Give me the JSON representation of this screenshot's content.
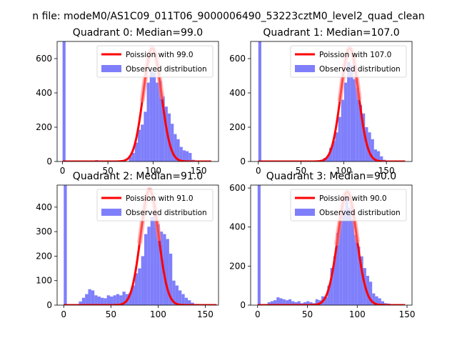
{
  "figure_title": "n file: modeM0/AS1C09_011T06_9000006490_53223cztM0_level2_quad_clean",
  "colors": {
    "observed": "#7f7ffb",
    "poisson": "#ff0000"
  },
  "chart_data": [
    {
      "type": "bar",
      "title": "Quadrant 0: Median=99.0",
      "xlim": [
        -6,
        172
      ],
      "ylim": [
        0,
        700
      ],
      "xticks": [
        0,
        50,
        100,
        150
      ],
      "yticks": [
        0,
        200,
        400,
        600
      ],
      "legend": [
        "Poission with 99.0",
        "Observed distribution"
      ],
      "legend_position": "top-right",
      "poisson_mean": 99.0,
      "poisson_peak": 660,
      "poisson_xrange": [
        0,
        164
      ],
      "bin_width": 3.3,
      "bins": [
        {
          "x0": 0,
          "v": 700
        },
        {
          "x0": 36,
          "v": 8
        },
        {
          "x0": 45,
          "v": 5
        },
        {
          "x0": 57,
          "v": 4
        },
        {
          "x0": 66,
          "v": 8
        },
        {
          "x0": 73.1,
          "v": 30
        },
        {
          "x0": 76.4,
          "v": 50
        },
        {
          "x0": 79.7,
          "v": 110
        },
        {
          "x0": 83,
          "v": 185
        },
        {
          "x0": 86.3,
          "v": 215
        },
        {
          "x0": 89.6,
          "v": 290
        },
        {
          "x0": 92.9,
          "v": 460
        },
        {
          "x0": 96.2,
          "v": 530
        },
        {
          "x0": 99.5,
          "v": 520
        },
        {
          "x0": 102.8,
          "v": 460
        },
        {
          "x0": 106.1,
          "v": 470
        },
        {
          "x0": 109.4,
          "v": 380
        },
        {
          "x0": 112.7,
          "v": 320
        },
        {
          "x0": 116,
          "v": 280
        },
        {
          "x0": 119.3,
          "v": 220
        },
        {
          "x0": 122.6,
          "v": 160
        },
        {
          "x0": 125.9,
          "v": 130
        },
        {
          "x0": 129.2,
          "v": 85
        },
        {
          "x0": 132.5,
          "v": 65
        },
        {
          "x0": 135.8,
          "v": 60
        },
        {
          "x0": 139.1,
          "v": 50
        },
        {
          "x0": 142.4,
          "v": 10
        },
        {
          "x0": 149,
          "v": 4
        }
      ]
    },
    {
      "type": "bar",
      "title": "Quadrant 1: Median=107.0",
      "xlim": [
        -9,
        180
      ],
      "ylim": [
        0,
        700
      ],
      "xticks": [
        0,
        50,
        100,
        150
      ],
      "yticks": [
        0,
        200,
        400,
        600
      ],
      "legend": [
        "Poission with 107.0",
        "Observed distribution"
      ],
      "legend_position": "top-right",
      "poisson_mean": 107.0,
      "poisson_peak": 660,
      "poisson_xrange": [
        0,
        172
      ],
      "bin_width": 3.5,
      "bins": [
        {
          "x0": 0,
          "v": 700
        },
        {
          "x0": 50,
          "v": 4
        },
        {
          "x0": 65,
          "v": 5
        },
        {
          "x0": 76,
          "v": 20
        },
        {
          "x0": 79.5,
          "v": 30
        },
        {
          "x0": 83,
          "v": 80
        },
        {
          "x0": 86.5,
          "v": 120
        },
        {
          "x0": 90,
          "v": 170
        },
        {
          "x0": 93.5,
          "v": 260
        },
        {
          "x0": 97,
          "v": 360
        },
        {
          "x0": 100.5,
          "v": 460
        },
        {
          "x0": 104,
          "v": 580
        },
        {
          "x0": 107.5,
          "v": 560
        },
        {
          "x0": 111,
          "v": 480
        },
        {
          "x0": 114.5,
          "v": 430
        },
        {
          "x0": 118,
          "v": 330
        },
        {
          "x0": 121.5,
          "v": 280
        },
        {
          "x0": 125,
          "v": 200
        },
        {
          "x0": 128.5,
          "v": 170
        },
        {
          "x0": 132,
          "v": 130
        },
        {
          "x0": 135.5,
          "v": 70
        },
        {
          "x0": 139,
          "v": 60
        },
        {
          "x0": 142.5,
          "v": 30
        },
        {
          "x0": 146,
          "v": 10
        },
        {
          "x0": 150,
          "v": 6
        }
      ]
    },
    {
      "type": "bar",
      "title": "Quadrant 2: Median=91.0",
      "xlim": [
        -7,
        164
      ],
      "ylim": [
        0,
        490
      ],
      "xticks": [
        0,
        50,
        100,
        150
      ],
      "yticks": [
        0,
        100,
        200,
        300,
        400
      ],
      "legend": [
        "Poission with 91.0",
        "Observed distribution"
      ],
      "legend_position": "top-right",
      "poisson_mean": 91.0,
      "poisson_peak": 470,
      "poisson_xrange": [
        0,
        162
      ],
      "bin_width": 3.3,
      "bins": [
        {
          "x0": 0,
          "v": 490
        },
        {
          "x0": 16,
          "v": 15
        },
        {
          "x0": 19.3,
          "v": 30
        },
        {
          "x0": 22.6,
          "v": 45
        },
        {
          "x0": 25.9,
          "v": 65
        },
        {
          "x0": 29.2,
          "v": 60
        },
        {
          "x0": 32.5,
          "v": 40
        },
        {
          "x0": 35.8,
          "v": 35
        },
        {
          "x0": 39.1,
          "v": 30
        },
        {
          "x0": 42.4,
          "v": 28
        },
        {
          "x0": 45.7,
          "v": 40
        },
        {
          "x0": 49,
          "v": 35
        },
        {
          "x0": 52.3,
          "v": 40
        },
        {
          "x0": 55.6,
          "v": 45
        },
        {
          "x0": 58.9,
          "v": 40
        },
        {
          "x0": 62.2,
          "v": 55
        },
        {
          "x0": 65.5,
          "v": 45
        },
        {
          "x0": 68.8,
          "v": 50
        },
        {
          "x0": 72.1,
          "v": 80
        },
        {
          "x0": 75.4,
          "v": 130
        },
        {
          "x0": 78.7,
          "v": 150
        },
        {
          "x0": 82,
          "v": 200
        },
        {
          "x0": 85.3,
          "v": 290
        },
        {
          "x0": 88.6,
          "v": 320
        },
        {
          "x0": 91.9,
          "v": 360
        },
        {
          "x0": 95.2,
          "v": 380
        },
        {
          "x0": 98.5,
          "v": 330
        },
        {
          "x0": 101.8,
          "v": 300
        },
        {
          "x0": 105.1,
          "v": 290
        },
        {
          "x0": 108.4,
          "v": 270
        },
        {
          "x0": 111.7,
          "v": 210
        },
        {
          "x0": 115,
          "v": 100
        },
        {
          "x0": 118.3,
          "v": 80
        },
        {
          "x0": 121.6,
          "v": 60
        },
        {
          "x0": 124.9,
          "v": 45
        },
        {
          "x0": 128.2,
          "v": 30
        },
        {
          "x0": 131.5,
          "v": 20
        },
        {
          "x0": 134.8,
          "v": 10
        },
        {
          "x0": 140,
          "v": 5
        }
      ]
    },
    {
      "type": "bar",
      "title": "Quadrant 3: Median=90.0",
      "xlim": [
        -7,
        155
      ],
      "ylim": [
        0,
        615
      ],
      "xticks": [
        0,
        50,
        100,
        150
      ],
      "yticks": [
        0,
        200,
        400,
        600
      ],
      "legend": [
        "Poission with 90.0",
        "Observed distribution"
      ],
      "legend_position": "top-right",
      "poisson_mean": 90.0,
      "poisson_peak": 580,
      "poisson_xrange": [
        0,
        148
      ],
      "bin_width": 3.0,
      "bins": [
        {
          "x0": 0,
          "v": 615
        },
        {
          "x0": 10,
          "v": 15
        },
        {
          "x0": 13,
          "v": 20
        },
        {
          "x0": 16,
          "v": 25
        },
        {
          "x0": 19,
          "v": 40
        },
        {
          "x0": 22,
          "v": 35
        },
        {
          "x0": 25,
          "v": 30
        },
        {
          "x0": 28,
          "v": 25
        },
        {
          "x0": 31,
          "v": 30
        },
        {
          "x0": 34,
          "v": 20
        },
        {
          "x0": 37,
          "v": 15
        },
        {
          "x0": 40,
          "v": 20
        },
        {
          "x0": 43,
          "v": 10
        },
        {
          "x0": 46,
          "v": 15
        },
        {
          "x0": 49,
          "v": 20
        },
        {
          "x0": 52,
          "v": 15
        },
        {
          "x0": 55,
          "v": 10
        },
        {
          "x0": 58,
          "v": 30
        },
        {
          "x0": 61,
          "v": 25
        },
        {
          "x0": 64,
          "v": 45
        },
        {
          "x0": 67,
          "v": 40
        },
        {
          "x0": 70,
          "v": 100
        },
        {
          "x0": 73,
          "v": 190
        },
        {
          "x0": 76,
          "v": 250
        },
        {
          "x0": 79,
          "v": 370
        },
        {
          "x0": 82,
          "v": 460
        },
        {
          "x0": 85,
          "v": 490
        },
        {
          "x0": 88,
          "v": 560
        },
        {
          "x0": 91,
          "v": 500
        },
        {
          "x0": 94,
          "v": 440
        },
        {
          "x0": 97,
          "v": 360
        },
        {
          "x0": 100,
          "v": 300
        },
        {
          "x0": 103,
          "v": 250
        },
        {
          "x0": 106,
          "v": 190
        },
        {
          "x0": 109,
          "v": 150
        },
        {
          "x0": 112,
          "v": 120
        },
        {
          "x0": 115,
          "v": 60
        },
        {
          "x0": 118,
          "v": 45
        },
        {
          "x0": 121,
          "v": 35
        },
        {
          "x0": 124,
          "v": 20
        },
        {
          "x0": 127,
          "v": 10
        },
        {
          "x0": 130,
          "v": 8
        }
      ]
    }
  ]
}
